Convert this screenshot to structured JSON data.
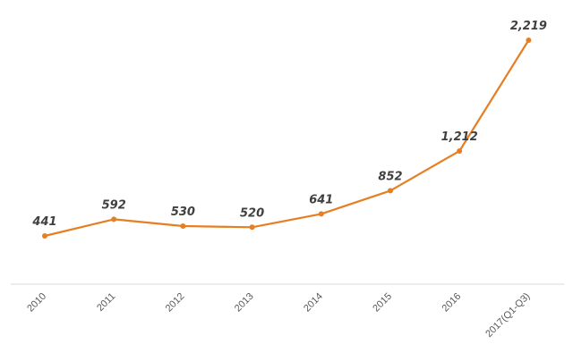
{
  "chart_data": {
    "type": "line",
    "categories": [
      "2010",
      "2011",
      "2012",
      "2013",
      "2014",
      "2015",
      "2016",
      "2017(Q1-Q3)"
    ],
    "series": [
      {
        "values": [
          441,
          592,
          530,
          520,
          641,
          852,
          1212,
          2219
        ],
        "labels": [
          "441",
          "592",
          "530",
          "520",
          "641",
          "852",
          "1,212",
          "2,219"
        ],
        "color": "#E67E22"
      }
    ],
    "title": "",
    "xlabel": "",
    "ylabel": "",
    "ylim": [
      0,
      2400
    ],
    "grid": false,
    "legend": "none",
    "colors": {
      "line": "#E67E22",
      "axis": "#D9D9D9",
      "label": "#404040",
      "tick": "#595959"
    }
  }
}
